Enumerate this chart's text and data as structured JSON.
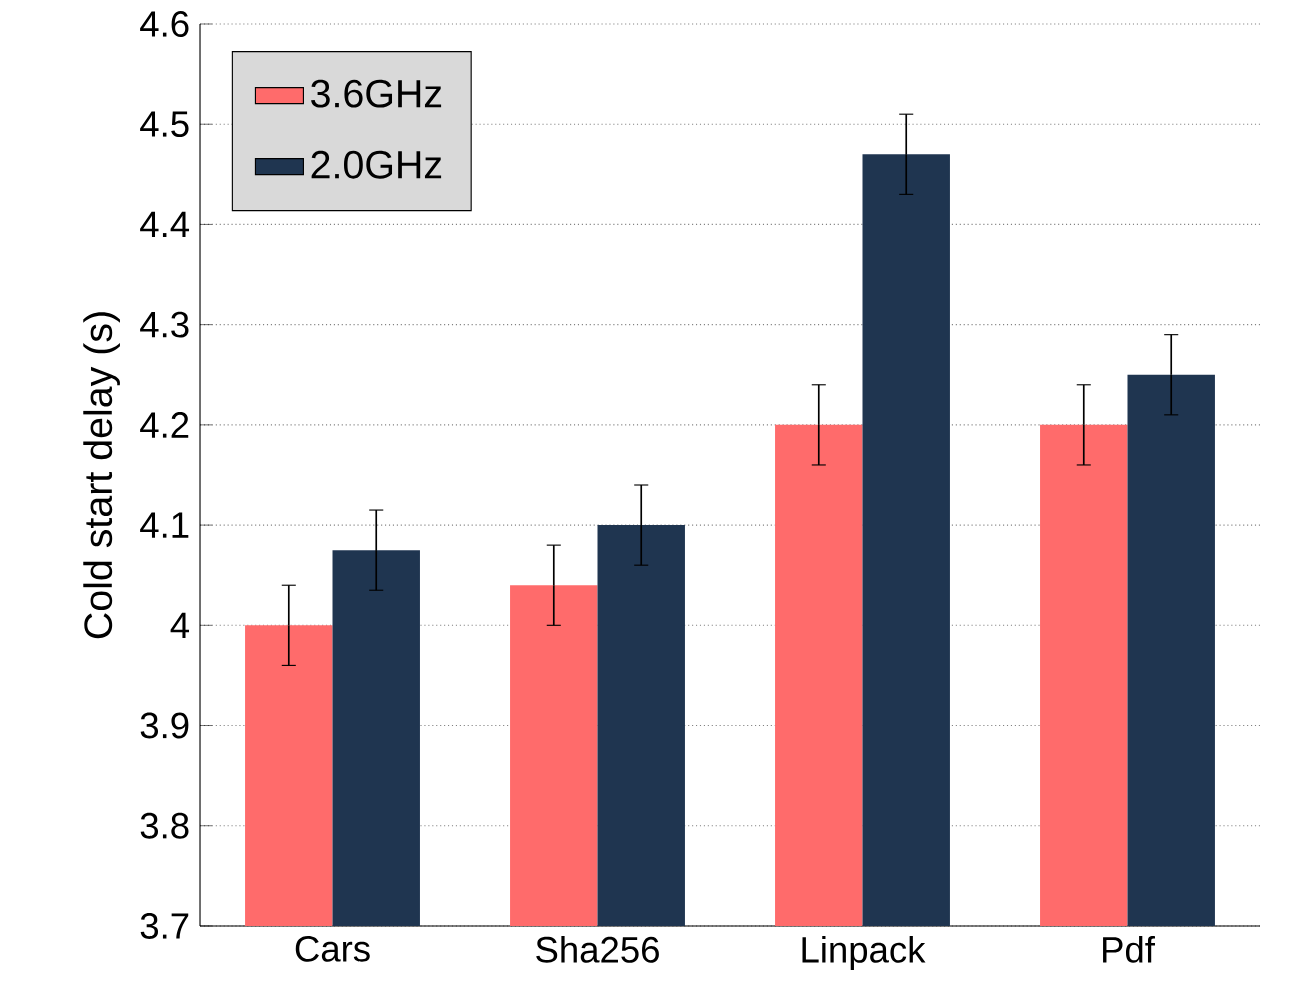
{
  "chart_data": {
    "type": "bar",
    "ylabel": "Cold start delay (s)",
    "categories": [
      "Cars",
      "Sha256",
      "Linpack",
      "Pdf"
    ],
    "series": [
      {
        "name": "3.6GHz",
        "color": "#ff6b6b",
        "values": [
          4.0,
          4.04,
          4.2,
          4.2
        ],
        "errors": [
          0.04,
          0.04,
          0.04,
          0.04
        ]
      },
      {
        "name": "2.0GHz",
        "color": "#1f3550",
        "values": [
          4.075,
          4.1,
          4.47,
          4.25
        ],
        "errors": [
          0.04,
          0.04,
          0.04,
          0.04
        ]
      }
    ],
    "ylim": [
      3.7,
      4.6
    ],
    "yticks": [
      3.7,
      3.8,
      3.9,
      4,
      4.1,
      4.2,
      4.3,
      4.4,
      4.5,
      4.6
    ],
    "grid": "y",
    "legend": "top left"
  }
}
